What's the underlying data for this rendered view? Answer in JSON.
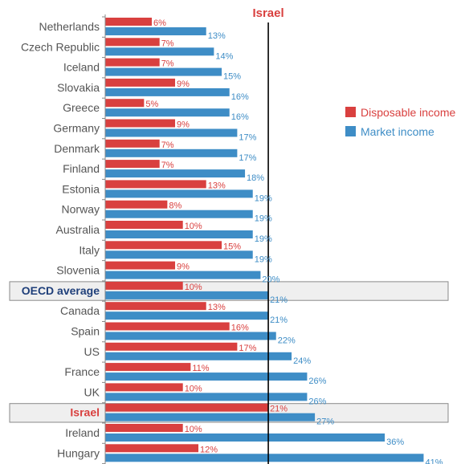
{
  "chart_data": {
    "type": "bar",
    "orientation": "horizontal",
    "categories": [
      "Netherlands",
      "Czech Republic",
      "Iceland",
      "Slovakia",
      "Greece",
      "Germany",
      "Denmark",
      "Finland",
      "Estonia",
      "Norway",
      "Australia",
      "Italy",
      "Slovenia",
      "OECD average",
      "Canada",
      "Spain",
      "US",
      "France",
      "UK",
      "Israel",
      "Ireland",
      "Hungary"
    ],
    "series": [
      {
        "name": "Disposable income",
        "color": "#d9403f",
        "values": [
          6,
          7,
          7,
          9,
          5,
          9,
          7,
          7,
          13,
          8,
          10,
          15,
          9,
          10,
          13,
          16,
          17,
          11,
          10,
          21,
          10,
          12
        ],
        "labels": [
          "6%",
          "7%",
          "7%",
          "9%",
          "5%",
          "9%",
          "7%",
          "7%",
          "13%",
          "8%",
          "10%",
          "15%",
          "9%",
          "10%",
          "13%",
          "16%",
          "17%",
          "11%",
          "10%",
          "21%",
          "10%",
          "12%"
        ]
      },
      {
        "name": "Market income",
        "color": "#3e8dc6",
        "values": [
          13,
          14,
          15,
          16,
          16,
          17,
          17,
          18,
          19,
          19,
          19,
          19,
          20,
          21,
          21,
          22,
          24,
          26,
          26,
          27,
          36,
          41
        ],
        "labels": [
          "13%",
          "14%",
          "15%",
          "16%",
          "16%",
          "17%",
          "17%",
          "18%",
          "19%",
          "19%",
          "19%",
          "19%",
          "20%",
          "21%",
          "21%",
          "22%",
          "24%",
          "26%",
          "26%",
          "27%",
          "36%",
          "41%"
        ]
      }
    ],
    "highlighted_categories": {
      "OECD average": "oecd",
      "Israel": "israel"
    },
    "reference_line": {
      "value": 21,
      "label": "Israel"
    },
    "xlim": [
      0,
      45
    ],
    "legend": {
      "position": "right"
    },
    "grid": false
  }
}
